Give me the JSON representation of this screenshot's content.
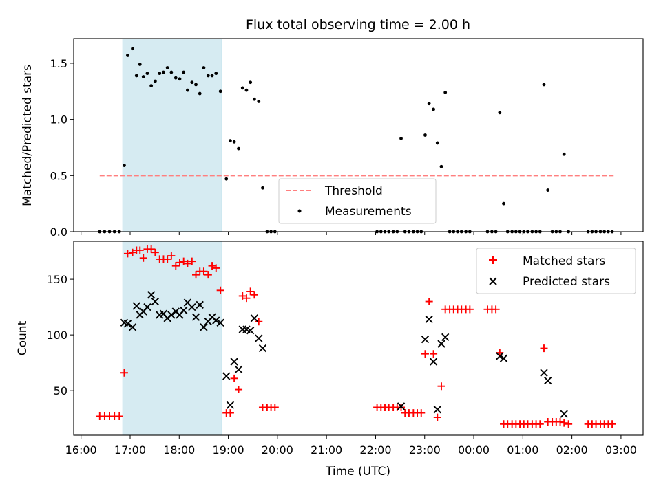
{
  "chart_data": [
    {
      "type": "scatter",
      "title": "Flux total observing time = 2.00 h",
      "ylabel": "Matched/Predicted stars",
      "xlabel": "",
      "xlim": [
        15.85,
        27.45
      ],
      "ylim": [
        0,
        1.72
      ],
      "yticks": [
        0.0,
        0.5,
        1.0,
        1.5
      ],
      "ytick_labels": [
        "0.0",
        "0.5",
        "1.0",
        "1.5"
      ],
      "highlight_span": {
        "from": 16.85,
        "to": 18.87,
        "color": "#add8e6"
      },
      "threshold": {
        "name": "Threshold",
        "value": 0.5,
        "x_from": 16.38,
        "x_to": 26.85,
        "color": "#ff7f7f"
      },
      "legend": {
        "position": "lower-center",
        "entries": [
          "Threshold",
          "Measurements"
        ]
      },
      "series": [
        {
          "name": "Measurements",
          "color": "#000000",
          "x": [
            16.38,
            16.48,
            16.58,
            16.68,
            16.78,
            16.88,
            16.95,
            17.05,
            17.13,
            17.2,
            17.27,
            17.35,
            17.43,
            17.51,
            17.6,
            17.68,
            17.76,
            17.84,
            17.93,
            18.01,
            18.09,
            18.17,
            18.26,
            18.34,
            18.42,
            18.5,
            18.59,
            18.67,
            18.75,
            18.84,
            18.96,
            19.04,
            19.12,
            19.21,
            19.29,
            19.37,
            19.45,
            19.53,
            19.62,
            19.7,
            19.79,
            19.87,
            19.95,
            22.03,
            22.11,
            22.19,
            22.27,
            22.36,
            22.44,
            22.52,
            22.6,
            22.68,
            22.77,
            22.85,
            22.93,
            23.01,
            23.09,
            23.18,
            23.26,
            23.34,
            23.42,
            23.51,
            23.59,
            23.67,
            23.75,
            23.84,
            23.92,
            24.28,
            24.37,
            24.45,
            24.53,
            24.61,
            24.69,
            24.78,
            24.86,
            24.94,
            25.02,
            25.1,
            25.19,
            25.27,
            25.35,
            25.43,
            25.51,
            25.6,
            25.68,
            25.76,
            25.84,
            25.93,
            26.33,
            26.41,
            26.49,
            26.58,
            26.66,
            26.74,
            26.82
          ],
          "y": [
            0,
            0,
            0,
            0,
            0,
            0.59,
            1.57,
            1.63,
            1.39,
            1.49,
            1.38,
            1.41,
            1.3,
            1.34,
            1.41,
            1.42,
            1.46,
            1.42,
            1.37,
            1.36,
            1.42,
            1.26,
            1.33,
            1.31,
            1.23,
            1.46,
            1.39,
            1.39,
            1.41,
            1.25,
            0.47,
            0.81,
            0.8,
            0.74,
            1.28,
            1.26,
            1.33,
            1.18,
            1.16,
            0.39,
            0,
            0,
            0,
            0,
            0,
            0,
            0,
            0,
            0,
            0.83,
            0,
            0,
            0,
            0,
            0,
            0.86,
            1.14,
            1.09,
            0.79,
            0.58,
            1.24,
            0,
            0,
            0,
            0,
            0,
            0,
            0,
            0,
            0,
            1.06,
            0.25,
            0,
            0,
            0,
            0,
            0,
            0,
            0,
            0,
            0,
            1.31,
            0.37,
            0,
            0,
            0,
            0.69,
            0,
            0,
            0,
            0,
            0,
            0,
            0,
            0
          ]
        }
      ]
    },
    {
      "type": "scatter",
      "title": "",
      "xlabel": "Time (UTC)",
      "ylabel": "Count",
      "xlim": [
        15.85,
        27.45
      ],
      "ylim": [
        10,
        184
      ],
      "yticks": [
        50,
        100,
        150
      ],
      "ytick_labels": [
        "50",
        "100",
        "150"
      ],
      "xticks": [
        16,
        17,
        18,
        19,
        20,
        21,
        22,
        23,
        24,
        25,
        26,
        27
      ],
      "xtick_labels": [
        "16:00",
        "17:00",
        "18:00",
        "19:00",
        "20:00",
        "21:00",
        "22:00",
        "23:00",
        "00:00",
        "01:00",
        "02:00",
        "03:00"
      ],
      "highlight_span": {
        "from": 16.85,
        "to": 18.87,
        "color": "#add8e6"
      },
      "legend": {
        "position": "top-right",
        "entries": [
          "Matched stars",
          "Predicted stars"
        ]
      },
      "series": [
        {
          "name": "Matched stars",
          "marker": "+",
          "color": "#ff0000",
          "x": [
            16.38,
            16.48,
            16.58,
            16.68,
            16.78,
            16.88,
            16.95,
            17.05,
            17.13,
            17.2,
            17.27,
            17.35,
            17.43,
            17.51,
            17.6,
            17.68,
            17.76,
            17.84,
            17.93,
            18.01,
            18.09,
            18.17,
            18.26,
            18.34,
            18.42,
            18.5,
            18.59,
            18.67,
            18.75,
            18.84,
            18.96,
            19.04,
            19.12,
            19.21,
            19.29,
            19.37,
            19.45,
            19.53,
            19.62,
            19.7,
            19.79,
            19.87,
            19.95,
            22.03,
            22.11,
            22.19,
            22.27,
            22.36,
            22.44,
            22.52,
            22.6,
            22.68,
            22.77,
            22.85,
            22.93,
            23.01,
            23.09,
            23.18,
            23.26,
            23.34,
            23.42,
            23.51,
            23.59,
            23.67,
            23.75,
            23.84,
            23.92,
            24.28,
            24.37,
            24.45,
            24.53,
            24.61,
            24.69,
            24.78,
            24.86,
            24.94,
            25.02,
            25.1,
            25.19,
            25.27,
            25.35,
            25.43,
            25.51,
            25.6,
            25.68,
            25.76,
            25.84,
            25.93,
            26.33,
            26.41,
            26.49,
            26.58,
            26.66,
            26.74,
            26.82
          ],
          "y": [
            27,
            27,
            27,
            27,
            27,
            66,
            173,
            174,
            176,
            176,
            169,
            177,
            177,
            174,
            168,
            168,
            168,
            171,
            162,
            165,
            166,
            164,
            166,
            154,
            157,
            157,
            154,
            162,
            160,
            140,
            30,
            30,
            61,
            51,
            135,
            133,
            139,
            136,
            112,
            35,
            35,
            35,
            35,
            35,
            35,
            35,
            35,
            35,
            35,
            35,
            30,
            30,
            30,
            30,
            30,
            83,
            130,
            83,
            26,
            54,
            123,
            123,
            123,
            123,
            123,
            123,
            123,
            123,
            123,
            123,
            84,
            20,
            20,
            20,
            20,
            20,
            20,
            20,
            20,
            20,
            20,
            88,
            22,
            22,
            22,
            22,
            21,
            20,
            20,
            20,
            20,
            20,
            20,
            20,
            20
          ]
        },
        {
          "name": "Predicted stars",
          "marker": "x",
          "color": "#000000",
          "x": [
            16.88,
            16.95,
            17.05,
            17.13,
            17.2,
            17.27,
            17.35,
            17.43,
            17.51,
            17.6,
            17.68,
            17.76,
            17.84,
            17.93,
            18.01,
            18.09,
            18.17,
            18.26,
            18.34,
            18.42,
            18.5,
            18.59,
            18.67,
            18.75,
            18.84,
            18.96,
            19.04,
            19.12,
            19.21,
            19.29,
            19.37,
            19.45,
            19.53,
            19.62,
            19.7,
            22.52,
            23.01,
            23.09,
            23.18,
            23.26,
            23.34,
            23.42,
            24.53,
            24.61,
            25.43,
            25.51,
            25.84
          ],
          "y": [
            111,
            110,
            107,
            126,
            118,
            121,
            125,
            136,
            130,
            118,
            119,
            115,
            118,
            121,
            118,
            122,
            129,
            125,
            116,
            127,
            107,
            112,
            116,
            113,
            111,
            63,
            37,
            76,
            69,
            105,
            105,
            104,
            115,
            97,
            88,
            36,
            96,
            114,
            76,
            33,
            92,
            98,
            81,
            79,
            66,
            59,
            29
          ]
        }
      ]
    }
  ]
}
